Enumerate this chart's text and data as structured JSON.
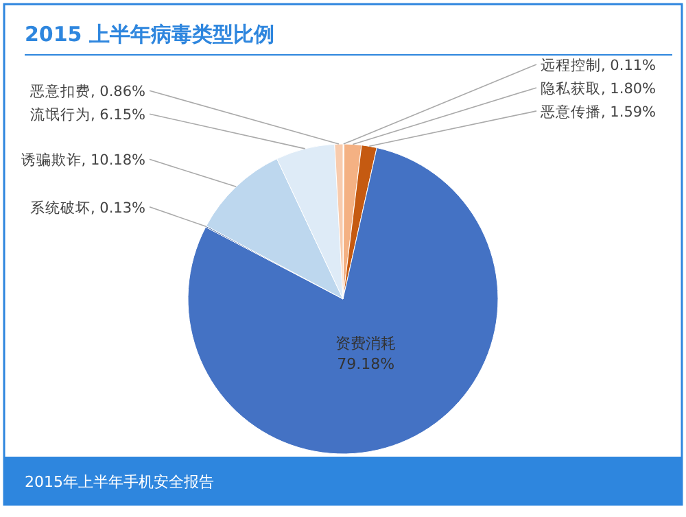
{
  "chart_data": {
    "type": "pie",
    "title": "2015 上半年病毒类型比例",
    "categories": [
      "远程控制",
      "隐私获取",
      "恶意传播",
      "资费消耗",
      "系统破坏",
      "诱骗欺诈",
      "流氓行为",
      "恶意扣费"
    ],
    "values": [
      0.11,
      1.8,
      1.59,
      79.18,
      0.13,
      10.18,
      6.15,
      0.86
    ],
    "colors": [
      "#fde9d9",
      "#f4b183",
      "#c55a11",
      "#4472c4",
      "#2f5597",
      "#bdd7ee",
      "#deebf7",
      "#f8cbad"
    ],
    "value_labels": [
      ", 0.11%",
      ", 1.80%",
      ", 1.59%",
      "79.18%",
      ", 0.13%",
      ", 10.18%",
      ", 6.15%",
      ", 0.86%"
    ],
    "annotations": [
      "2015年上半年手机安全报告"
    ]
  }
}
